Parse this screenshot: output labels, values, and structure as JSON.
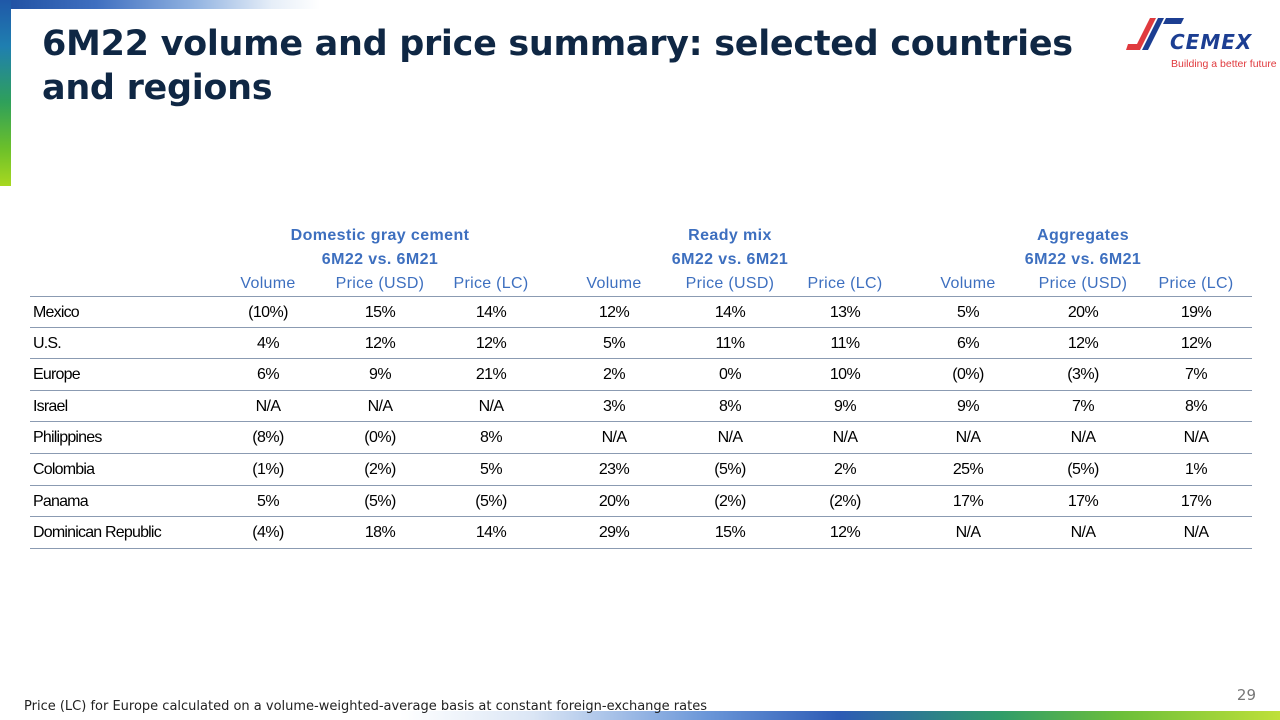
{
  "title": "6M22 volume and price summary: selected countries and regions",
  "logo": {
    "wordmark": "CEMEX",
    "tagline": "Building a better future"
  },
  "table": {
    "groups": [
      {
        "name": "Domestic gray cement",
        "period": "6M22 vs. 6M21"
      },
      {
        "name": "Ready mix",
        "period": "6M22 vs. 6M21"
      },
      {
        "name": "Aggregates",
        "period": "6M22 vs. 6M21"
      }
    ],
    "columns": [
      "Volume",
      "Price (USD)",
      "Price (LC)",
      "Volume",
      "Price (USD)",
      "Price (LC)",
      "Volume",
      "Price (USD)",
      "Price (LC)"
    ],
    "rows": [
      {
        "name": "Mexico",
        "values": [
          "(10%)",
          "15%",
          "14%",
          "12%",
          "14%",
          "13%",
          "5%",
          "20%",
          "19%"
        ]
      },
      {
        "name": "U.S.",
        "values": [
          "4%",
          "12%",
          "12%",
          "5%",
          "11%",
          "11%",
          "6%",
          "12%",
          "12%"
        ]
      },
      {
        "name": "Europe",
        "values": [
          "6%",
          "9%",
          "21%",
          "2%",
          "0%",
          "10%",
          "(0%)",
          "(3%)",
          "7%"
        ]
      },
      {
        "name": "Israel",
        "values": [
          "N/A",
          "N/A",
          "N/A",
          "3%",
          "8%",
          "9%",
          "9%",
          "7%",
          "8%"
        ]
      },
      {
        "name": "Philippines",
        "values": [
          "(8%)",
          "(0%)",
          "8%",
          "N/A",
          "N/A",
          "N/A",
          "N/A",
          "N/A",
          "N/A"
        ]
      },
      {
        "name": "Colombia",
        "values": [
          "(1%)",
          "(2%)",
          "5%",
          "23%",
          "(5%)",
          "2%",
          "25%",
          "(5%)",
          "1%"
        ]
      },
      {
        "name": "Panama",
        "values": [
          "5%",
          "(5%)",
          "(5%)",
          "20%",
          "(2%)",
          "(2%)",
          "17%",
          "17%",
          "17%"
        ]
      },
      {
        "name": "Dominican Republic",
        "values": [
          "(4%)",
          "18%",
          "14%",
          "29%",
          "15%",
          "12%",
          "N/A",
          "N/A",
          "N/A"
        ]
      }
    ]
  },
  "footnote": "Price (LC) for Europe calculated on a volume-weighted-average basis at constant foreign-exchange rates",
  "page_number": "29",
  "colors": {
    "title": "#0f2744",
    "header": "#3d6fbf",
    "brand_blue": "#1c3e92",
    "brand_red": "#e03a3e"
  }
}
